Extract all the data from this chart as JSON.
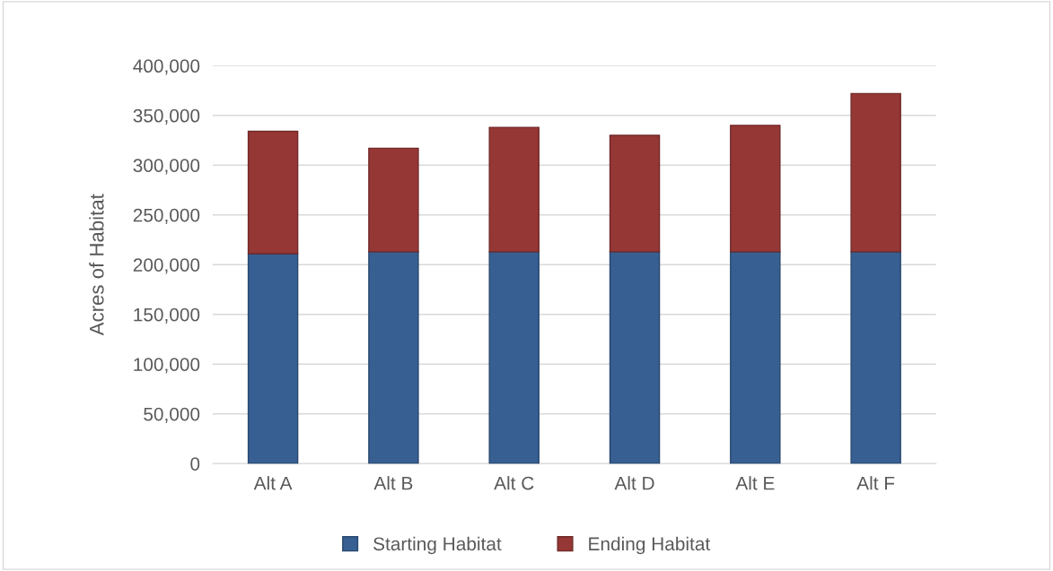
{
  "chart_data": {
    "type": "bar",
    "stacked": true,
    "ylabel": "Acres of Habitat",
    "categories": [
      "Alt A",
      "Alt B",
      "Alt C",
      "Alt D",
      "Alt E",
      "Alt F"
    ],
    "series": [
      {
        "name": "Starting Habitat",
        "color": "#375f92",
        "values": [
          211000,
          213000,
          213000,
          213000,
          213000,
          213000
        ]
      },
      {
        "name": "Ending Habitat",
        "color": "#953735",
        "values": [
          123000,
          104000,
          125000,
          117000,
          127000,
          159000
        ]
      }
    ],
    "ylim": [
      0,
      400000
    ],
    "yticks": [
      0,
      {
        "value": 50000,
        "label": "50,000"
      },
      {
        "value": 100000,
        "label": "100,000"
      },
      {
        "value": 150000,
        "label": "150,000"
      },
      {
        "value": 200000,
        "label": "200,000"
      },
      {
        "value": 250000,
        "label": "250,000"
      },
      {
        "value": 300000,
        "label": "300,000"
      },
      {
        "value": 350000,
        "label": "350,000"
      },
      {
        "value": 400000,
        "label": "400,000"
      }
    ],
    "grid": "y",
    "legend": "bottom"
  }
}
